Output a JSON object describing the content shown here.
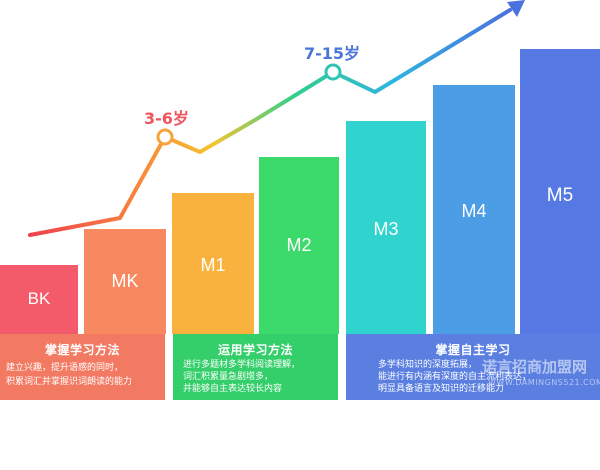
{
  "levels": [
    {
      "label": "BK",
      "color": "#f45b6a"
    },
    {
      "label": "MK",
      "color": "#f8885f"
    },
    {
      "label": "M1",
      "color": "#f9b23d"
    },
    {
      "label": "M2",
      "color": "#3cd96b"
    },
    {
      "label": "M3",
      "color": "#30d3ce"
    },
    {
      "label": "M4",
      "color": "#4b9de6"
    },
    {
      "label": "M5",
      "color": "#5578e2"
    }
  ],
  "age_markers": [
    {
      "label": "3-6岁",
      "color": "#ef5460"
    },
    {
      "label": "7-15岁",
      "color": "#4a76d9"
    }
  ],
  "panels": [
    {
      "title": "掌握学习方法",
      "color": "#f37a62",
      "lines": [
        "建立兴趣，提升语感的同时，",
        "积累词汇并掌握识词朗读的能力"
      ]
    },
    {
      "title": "运用学习方法",
      "color": "#34cf6a",
      "lines": [
        "进行多题材多学科阅读理解，",
        "词汇积累量急剧增多，",
        "并能够自主表达较长内容"
      ]
    },
    {
      "title": "掌握自主学习",
      "color": "#5a7fe0",
      "lines": [
        "多学科知识的深度拓展，",
        "能进行有内涵有深度的自主流利表达，",
        "明显具备语言及知识的迁移能力"
      ]
    }
  ],
  "watermark": {
    "brand": "诺言招商加盟网",
    "url": "WWW.DAMINGNS521.COM"
  }
}
